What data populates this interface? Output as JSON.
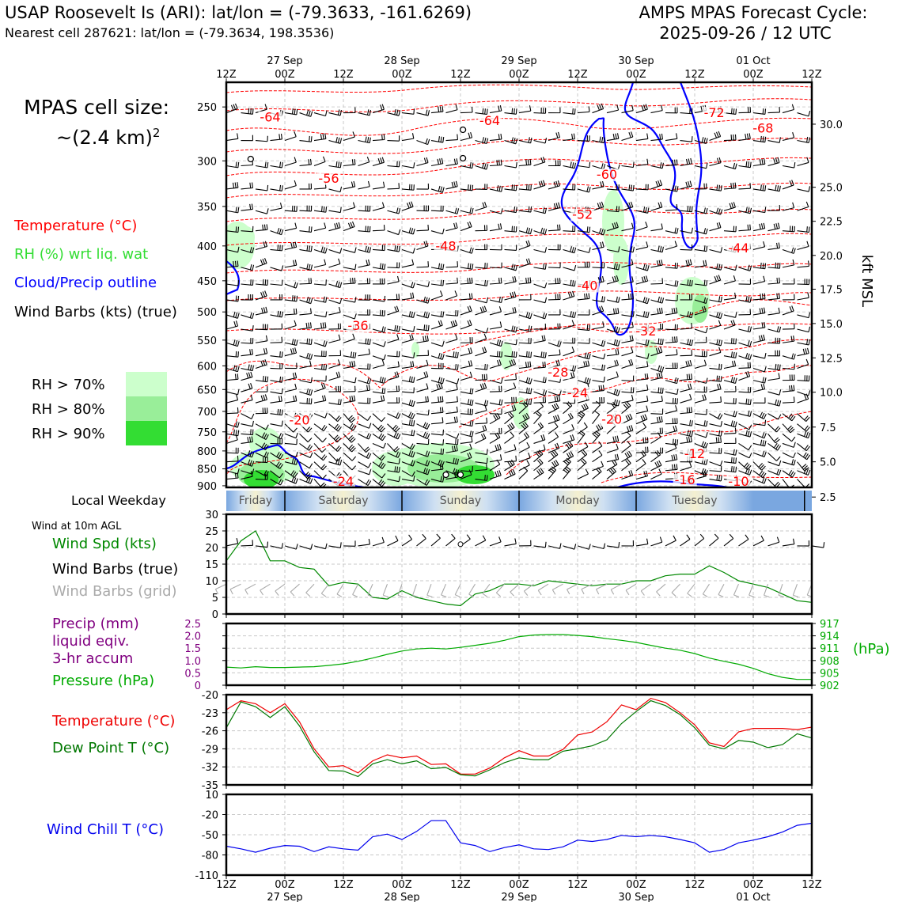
{
  "header": {
    "station": "USAP Roosevelt Is (ARI): lat/lon = (-79.3633, -161.6269)",
    "nearest_cell": "Nearest cell 287621: lat/lon = (-79.3634, 198.3536)",
    "forecast_title": "AMPS MPAS Forecast Cycle:",
    "forecast_cycle": "2025-09-26 / 12 UTC"
  },
  "sidebar": {
    "cell_size_label": "MPAS cell size:",
    "cell_size_value": "~(2.4 km)",
    "cell_size_exp": "2",
    "legend_temperature": "Temperature (°C)",
    "legend_rh": "RH (%) wrt liq. wat",
    "legend_cloud": "Cloud/Precip outline",
    "legend_wind": "Wind Barbs (kts) (true)",
    "rh_keys": [
      {
        "label": "RH > 70%",
        "color": "#ccffcc"
      },
      {
        "label": "RH > 80%",
        "color": "#99ee99"
      },
      {
        "label": "RH > 90%",
        "color": "#33dd33"
      }
    ],
    "local_weekday_label": "Local Weekday",
    "wind10m_label": "Wind at 10m AGL",
    "wind_spd_label": "Wind Spd (kts)",
    "wind_barbs_true_label": "Wind Barbs (true)",
    "wind_barbs_grid_label": "Wind Barbs (grid)",
    "precip_label_1": "Precip (mm)",
    "precip_label_2": "liquid eqiv.",
    "precip_label_3": "3-hr accum",
    "pressure_label": "Pressure (hPa)",
    "temperature_label": "Temperature (°C)",
    "dewpoint_label": "Dew Point T (°C)",
    "windchill_label": "Wind Chill T (°C)"
  },
  "colors": {
    "temperature": "#ff0000",
    "rh": "#33cc33",
    "cloud": "#0000ff",
    "wind": "#000000",
    "wind_grid": "#aaaaaa",
    "precip": "#800080",
    "pressure": "#00aa00",
    "dewpoint": "#007700",
    "windchill": "#0000ee"
  },
  "time_axis": {
    "top_dates": [
      "27 Sep",
      "28 Sep",
      "29 Sep",
      "30 Sep",
      "01 Oct"
    ],
    "ticks": [
      "12Z",
      "00Z",
      "12Z",
      "00Z",
      "12Z",
      "00Z",
      "12Z",
      "00Z",
      "12Z",
      "00Z",
      "12Z"
    ],
    "bottom_dates": [
      "27 Sep",
      "28 Sep",
      "29 Sep",
      "30 Sep",
      "01 Oct"
    ]
  },
  "weekday_bar": {
    "days": [
      "Friday",
      "Saturday",
      "Sunday",
      "Monday",
      "Tuesday"
    ]
  },
  "chart_data": [
    {
      "type": "heatmap",
      "name": "time-height cross section",
      "y_axis_label": "",
      "pressure_levels": [
        250,
        300,
        350,
        400,
        450,
        500,
        550,
        600,
        650,
        700,
        750,
        800,
        850,
        900
      ],
      "right_axis_label": "kft MSL",
      "right_axis_ticks": [
        "30.0",
        "25.0",
        "22.5",
        "20.0",
        "17.5",
        "15.0",
        "12.5",
        "10.0",
        "7.5",
        "5.0",
        "2.5"
      ],
      "right_axis_values": [
        30.0,
        25.0,
        22.5,
        20.0,
        17.5,
        15.0,
        12.5,
        10.0,
        7.5,
        5.0,
        2.5
      ],
      "right_axis_pressures": [
        265,
        328,
        368,
        413,
        463,
        520,
        584,
        656,
        738,
        830,
        935
      ],
      "temperature_labels": [
        {
          "text": "-64",
          "hour": 9,
          "p": 262
        },
        {
          "text": "-56",
          "hour": 21,
          "p": 322
        },
        {
          "text": "-64",
          "hour": 54,
          "p": 265
        },
        {
          "text": "-48",
          "hour": 45,
          "p": 405
        },
        {
          "text": "-72",
          "hour": 100,
          "p": 258
        },
        {
          "text": "-68",
          "hour": 110,
          "p": 272
        },
        {
          "text": "-60",
          "hour": 78,
          "p": 318
        },
        {
          "text": "-52",
          "hour": 73,
          "p": 364
        },
        {
          "text": "-44",
          "hour": 105,
          "p": 408
        },
        {
          "text": "-40",
          "hour": 74,
          "p": 463
        },
        {
          "text": "-36",
          "hour": 27,
          "p": 530
        },
        {
          "text": "-32",
          "hour": 86,
          "p": 540
        },
        {
          "text": "-28",
          "hour": 68,
          "p": 621
        },
        {
          "text": "-24",
          "hour": 72,
          "p": 665
        },
        {
          "text": "-20",
          "hour": 15,
          "p": 730
        },
        {
          "text": "-20",
          "hour": 79,
          "p": 728
        },
        {
          "text": "-12",
          "hour": 96,
          "p": 818
        },
        {
          "text": "-24",
          "hour": 24,
          "p": 898
        },
        {
          "text": "-16",
          "hour": 94,
          "p": 893
        },
        {
          "text": "-10",
          "hour": 105,
          "p": 898
        }
      ]
    },
    {
      "type": "line",
      "name": "Wind at 10m AGL",
      "ylim": [
        0,
        30
      ],
      "yticks": [
        0,
        5,
        10,
        15,
        20,
        25,
        30
      ],
      "x_hours": [
        0,
        3,
        6,
        9,
        12,
        15,
        18,
        21,
        24,
        27,
        30,
        33,
        36,
        39,
        42,
        45,
        48,
        51,
        54,
        57,
        60,
        63,
        66,
        69,
        72,
        75,
        78,
        81,
        84,
        87,
        90,
        93,
        96,
        99,
        102,
        105,
        108,
        111,
        114,
        117,
        120
      ],
      "series": [
        {
          "name": "Wind Spd (kts)",
          "values": [
            16,
            22,
            25,
            16,
            16,
            14,
            13.5,
            8.5,
            9.5,
            9,
            5,
            4.5,
            7,
            5,
            4,
            3,
            2.5,
            6,
            7,
            9,
            9,
            8.5,
            10,
            9.5,
            9,
            8.5,
            9,
            9,
            10,
            10,
            11.5,
            12,
            12,
            14.5,
            12.5,
            10,
            9,
            8,
            6,
            4,
            3.5
          ]
        }
      ]
    },
    {
      "type": "line",
      "name": "Precip and Pressure",
      "ylim_precip": [
        0,
        2.5
      ],
      "yticks_precip": [
        0,
        0.5,
        1.0,
        1.5,
        2.0,
        2.5
      ],
      "ylim_pressure": [
        902,
        917
      ],
      "yticks_pressure": [
        902,
        905,
        908,
        911,
        914,
        917
      ],
      "right_label": "(hPa)",
      "x_hours": [
        0,
        3,
        6,
        9,
        12,
        15,
        18,
        21,
        24,
        27,
        30,
        33,
        36,
        39,
        42,
        45,
        48,
        51,
        54,
        57,
        60,
        63,
        66,
        69,
        72,
        75,
        78,
        81,
        84,
        87,
        90,
        93,
        96,
        99,
        102,
        105,
        108,
        111,
        114,
        117,
        120
      ],
      "series": [
        {
          "name": "Pressure (hPa)",
          "values": [
            906.4,
            906.2,
            906.5,
            906.3,
            906.3,
            906.4,
            906.5,
            906.8,
            907.2,
            907.8,
            908.6,
            909.5,
            910.3,
            910.8,
            911.0,
            910.8,
            911.2,
            911.7,
            912.2,
            912.9,
            913.8,
            914.2,
            914.3,
            914.3,
            914.1,
            913.8,
            913.3,
            912.9,
            912.4,
            911.7,
            911.0,
            910.5,
            909.7,
            908.6,
            907.8,
            907.1,
            906.1,
            904.8,
            903.9,
            903.4,
            903.4
          ]
        },
        {
          "name": "Precip (mm)",
          "values": []
        }
      ]
    },
    {
      "type": "line",
      "name": "Temperature and Dew Point",
      "ylim": [
        -35,
        -20
      ],
      "yticks": [
        -35,
        -32,
        -29,
        -26,
        -23,
        -20
      ],
      "x_hours": [
        0,
        3,
        6,
        9,
        12,
        15,
        18,
        21,
        24,
        27,
        30,
        33,
        36,
        39,
        42,
        45,
        48,
        51,
        54,
        57,
        60,
        63,
        66,
        69,
        72,
        75,
        78,
        81,
        84,
        87,
        90,
        93,
        96,
        99,
        102,
        105,
        108,
        111,
        114,
        117,
        120
      ],
      "series": [
        {
          "name": "Temperature (°C)",
          "values": [
            -22.5,
            -21,
            -21.5,
            -23,
            -21.5,
            -24.5,
            -29,
            -32,
            -31.8,
            -33,
            -31,
            -30,
            -30.5,
            -30.2,
            -31.6,
            -31.5,
            -33.2,
            -33.2,
            -32.2,
            -30.5,
            -29.3,
            -30.2,
            -30.2,
            -29.1,
            -26.7,
            -26.2,
            -24.5,
            -21.7,
            -22.5,
            -20.6,
            -21.3,
            -23,
            -25,
            -28,
            -28.6,
            -26.2,
            -25.6,
            -25.6,
            -25.6,
            -25.8,
            -25.4
          ]
        },
        {
          "name": "Dew Point T (°C)",
          "values": [
            -25.5,
            -21.2,
            -22,
            -23.8,
            -22,
            -25.2,
            -29.5,
            -32.6,
            -32.7,
            -33.6,
            -31.5,
            -30.8,
            -31.5,
            -31,
            -32.3,
            -32.1,
            -33.3,
            -33.5,
            -32.5,
            -31.3,
            -30.5,
            -30.8,
            -30.8,
            -29.4,
            -29,
            -28.5,
            -27.5,
            -24.8,
            -22.8,
            -21,
            -21.8,
            -23.3,
            -25.5,
            -28.4,
            -29,
            -27.6,
            -27.9,
            -28.8,
            -28.3,
            -26.5,
            -27.2
          ]
        }
      ]
    },
    {
      "type": "line",
      "name": "Wind Chill",
      "ylim": [
        -110,
        10
      ],
      "yticks": [
        -110,
        -80,
        -50,
        -20,
        10
      ],
      "x_hours": [
        0,
        3,
        6,
        9,
        12,
        15,
        18,
        21,
        24,
        27,
        30,
        33,
        36,
        39,
        42,
        45,
        48,
        51,
        54,
        57,
        60,
        63,
        66,
        69,
        72,
        75,
        78,
        81,
        84,
        87,
        90,
        93,
        96,
        99,
        102,
        105,
        108,
        111,
        114,
        117,
        120
      ],
      "series": [
        {
          "name": "Wind Chill T (°C)",
          "values": [
            -67,
            -71,
            -76,
            -70,
            -66,
            -67,
            -75,
            -68,
            -71,
            -73,
            -53,
            -49,
            -57,
            -45,
            -29,
            -29,
            -62,
            -66,
            -75,
            -69,
            -65,
            -71,
            -72,
            -68,
            -58,
            -60,
            -57,
            -51,
            -53,
            -51,
            -53,
            -57,
            -62,
            -76,
            -72,
            -62,
            -58,
            -53,
            -46,
            -36,
            -33
          ]
        }
      ]
    }
  ]
}
